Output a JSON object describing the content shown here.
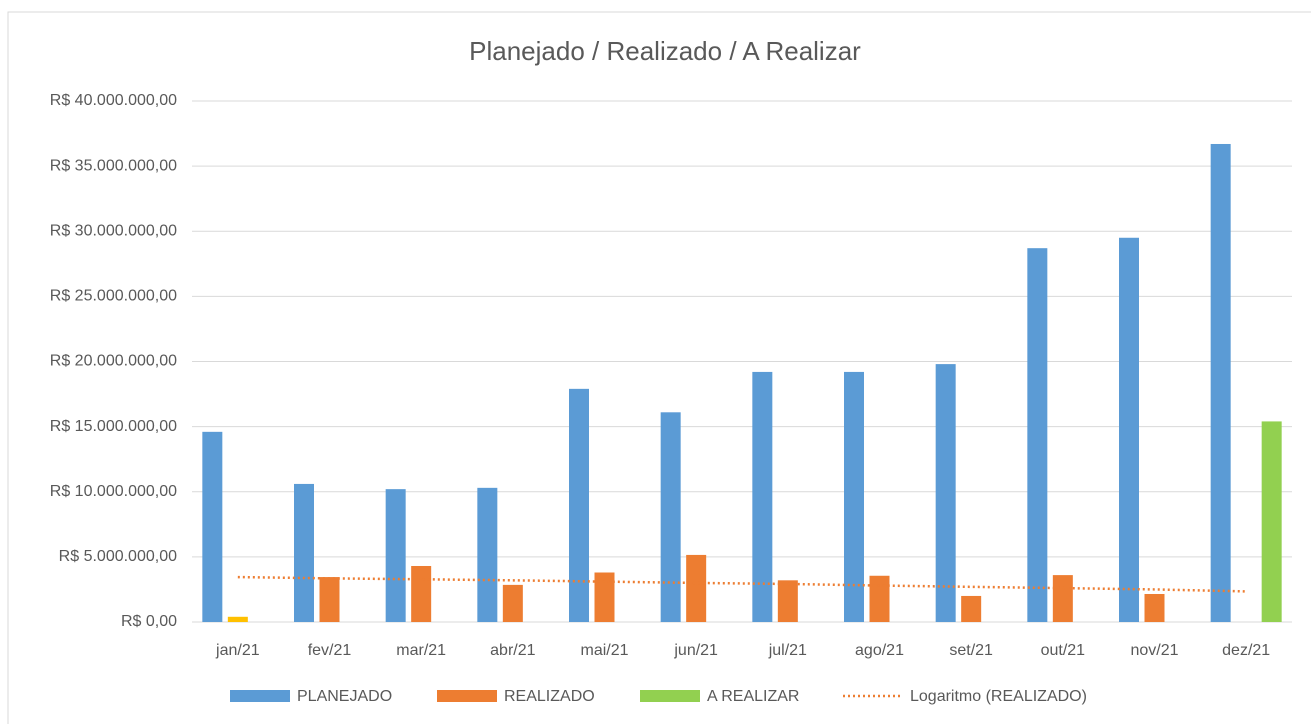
{
  "chart_data": {
    "type": "bar",
    "title": "Planejado / Realizado / A Realizar",
    "categories": [
      "jan/21",
      "fev/21",
      "mar/21",
      "abr/21",
      "mai/21",
      "jun/21",
      "jul/21",
      "ago/21",
      "set/21",
      "out/21",
      "nov/21",
      "dez/21"
    ],
    "series": [
      {
        "name": "PLANEJADO",
        "color": "#5b9bd5",
        "values": [
          14600000,
          10600000,
          10200000,
          10300000,
          17900000,
          16100000,
          19200000,
          19200000,
          19800000,
          28700000,
          29500000,
          36700000
        ]
      },
      {
        "name": "REALIZADO",
        "color": "#ed7d31",
        "highlight": {
          "index": 0,
          "color": "#ffc000"
        },
        "values": [
          400000,
          3450000,
          4300000,
          2850000,
          3800000,
          5150000,
          3200000,
          3550000,
          2000000,
          3600000,
          2150000,
          null
        ]
      },
      {
        "name": "A REALIZAR",
        "color": "#92d050",
        "values": [
          null,
          null,
          null,
          null,
          null,
          null,
          null,
          null,
          null,
          null,
          null,
          15400000
        ]
      },
      {
        "name": "Logaritmo (REALIZADO)",
        "type": "trend",
        "color": "#ed7d31",
        "values": [
          3450000,
          3350000,
          3280000,
          3200000,
          3100000,
          3000000,
          2920000,
          2800000,
          2700000,
          2600000,
          2500000,
          2350000
        ]
      }
    ],
    "ylim": [
      0,
      40000000
    ],
    "yticks": [
      {
        "value": 0,
        "label": "R$ 0,00"
      },
      {
        "value": 5000000,
        "label": "R$ 5.000.000,00"
      },
      {
        "value": 10000000,
        "label": "R$ 10.000.000,00"
      },
      {
        "value": 15000000,
        "label": "R$ 15.000.000,00"
      },
      {
        "value": 20000000,
        "label": "R$ 20.000.000,00"
      },
      {
        "value": 25000000,
        "label": "R$ 25.000.000,00"
      },
      {
        "value": 30000000,
        "label": "R$ 30.000.000,00"
      },
      {
        "value": 35000000,
        "label": "R$ 35.000.000,00"
      },
      {
        "value": 40000000,
        "label": "R$ 40.000.000,00"
      }
    ],
    "grid": true,
    "legend": "bottom"
  }
}
